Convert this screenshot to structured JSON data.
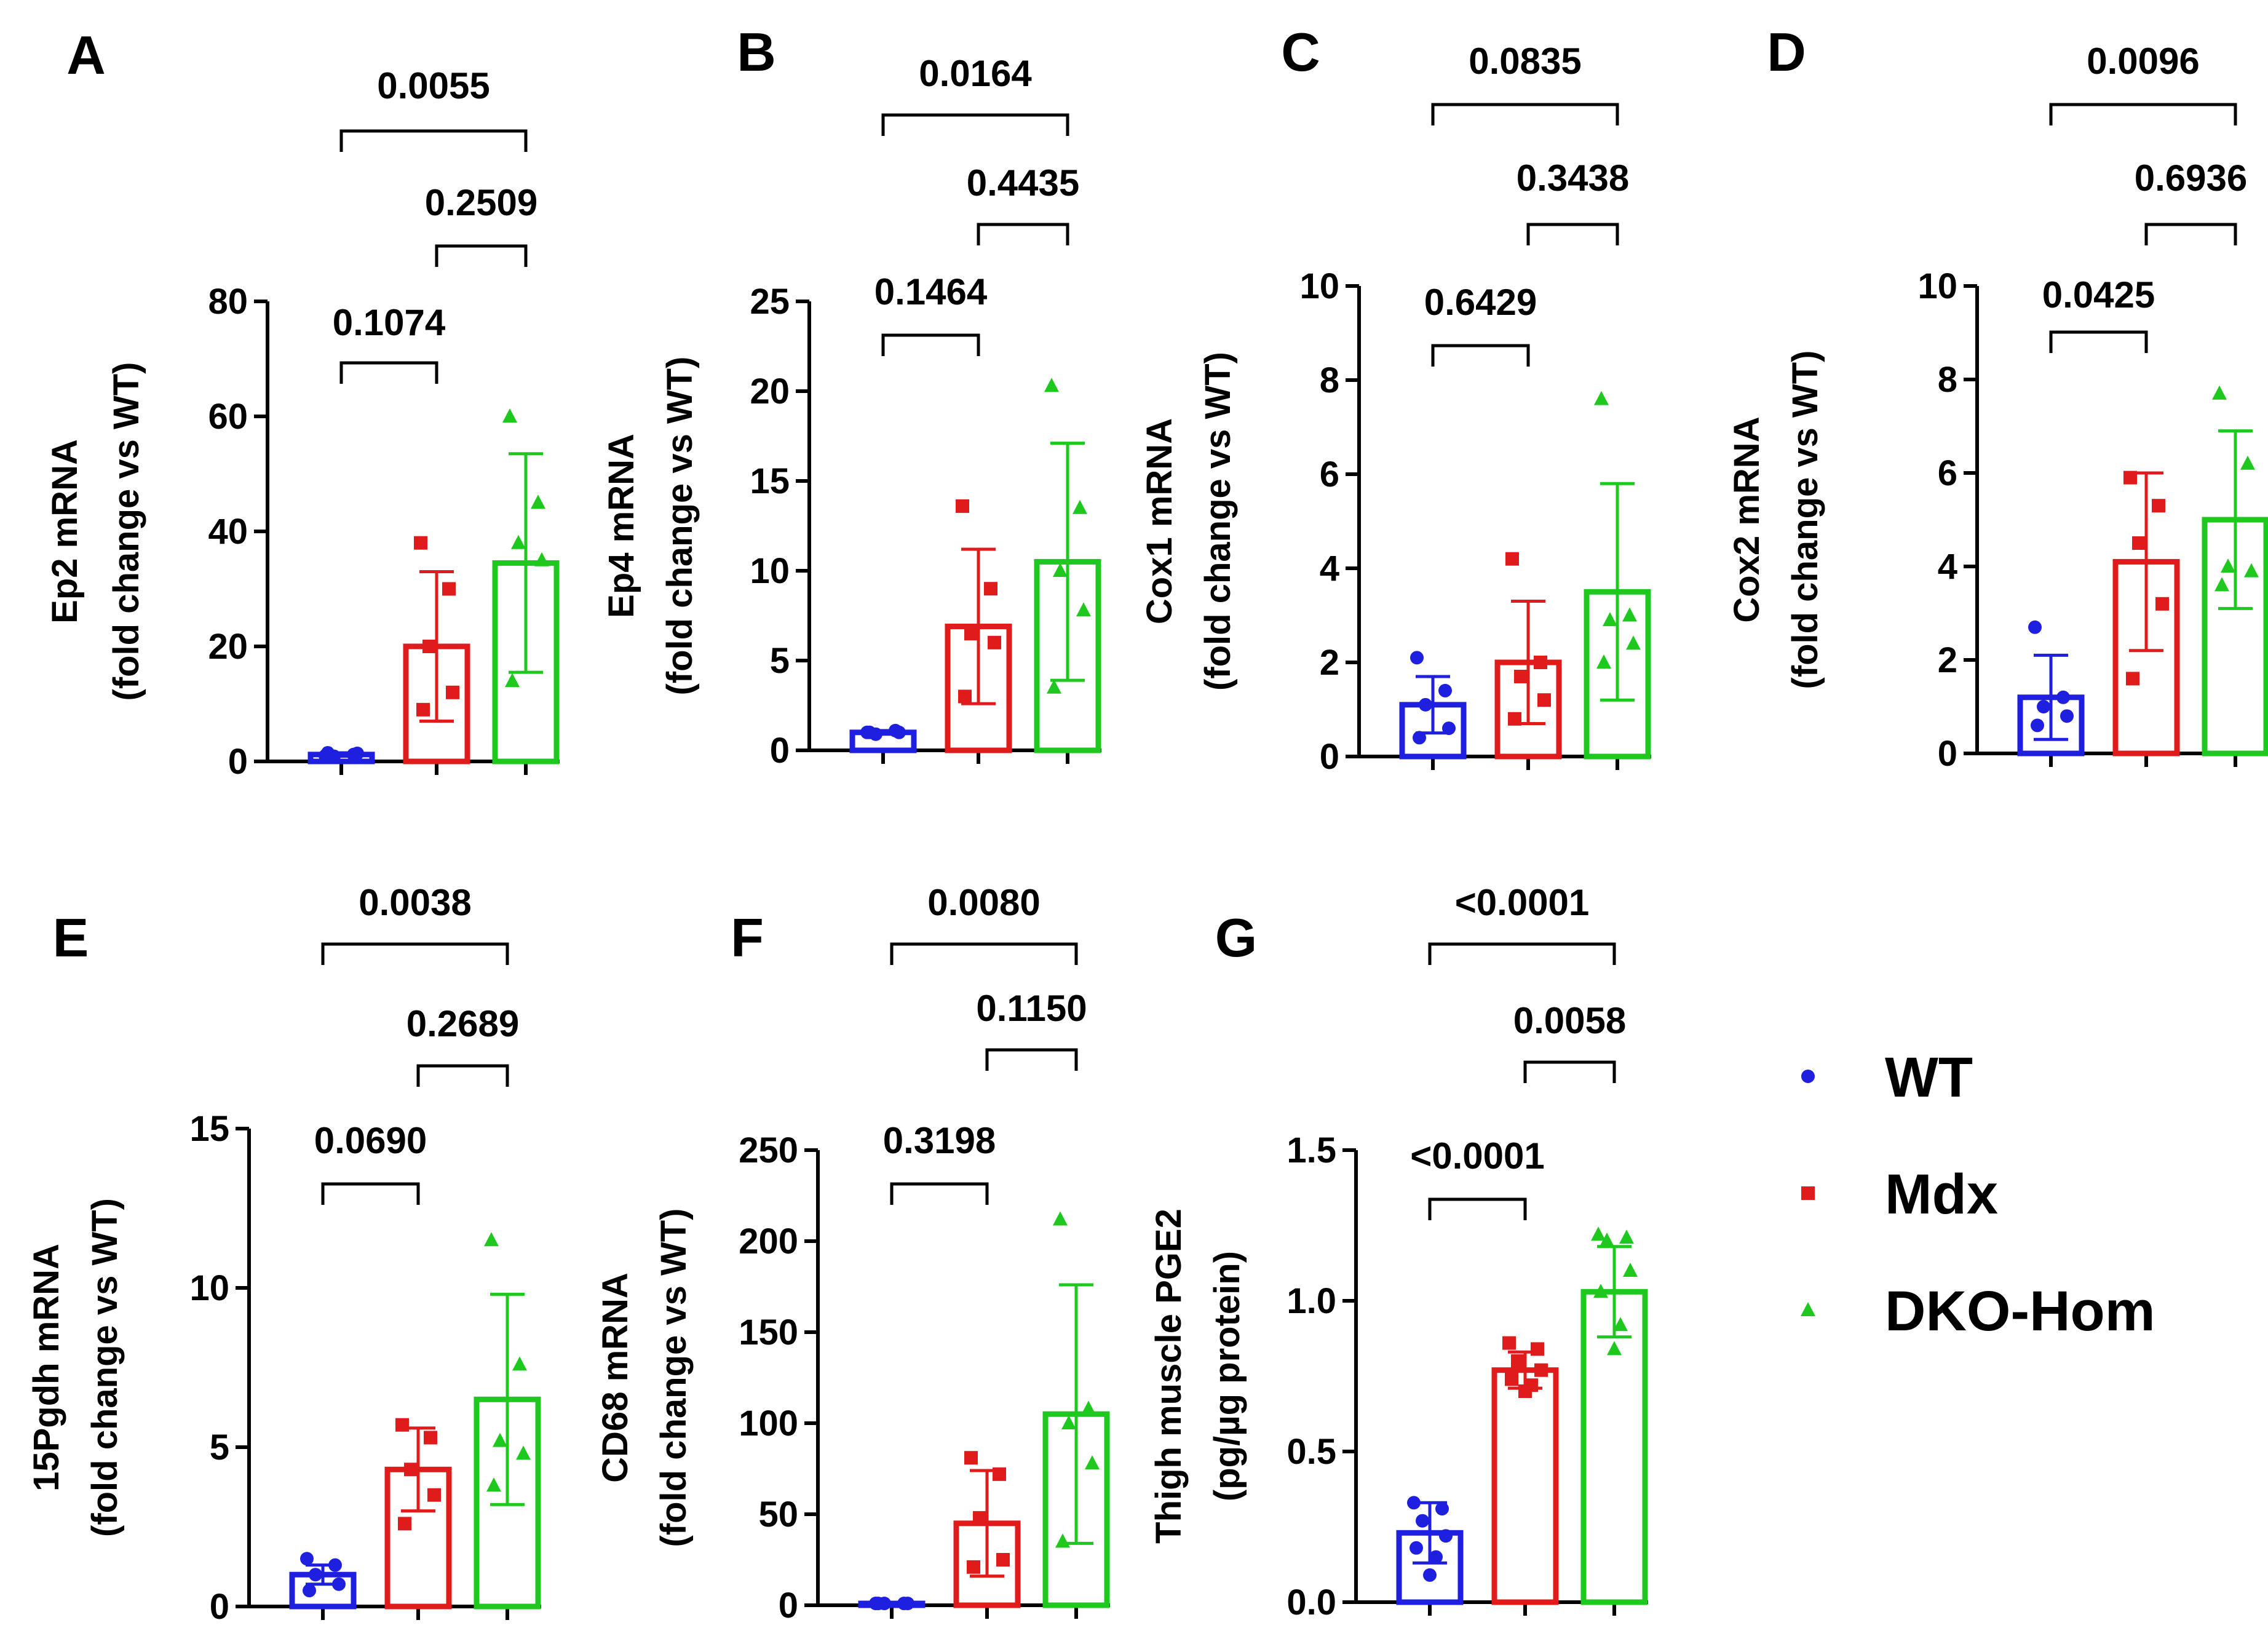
{
  "colors": {
    "WT": "#1f1fe0",
    "Mdx": "#e01b1b",
    "DKO-Hom": "#1ec81e",
    "axis": "#000000"
  },
  "legend": [
    {
      "label": "WT",
      "marker": "circle",
      "color": "#1f1fe0"
    },
    {
      "label": "Mdx",
      "marker": "square",
      "color": "#e01b1b"
    },
    {
      "label": "DKO-Hom",
      "marker": "triangle",
      "color": "#1ec81e"
    }
  ],
  "chart_data": [
    {
      "type": "bar",
      "panel": "A",
      "ylabel": [
        "Ep2 mRNA",
        "(fold change vs WT)"
      ],
      "ylim": [
        0,
        80
      ],
      "yticks": [
        0,
        20,
        40,
        60,
        80
      ],
      "categories": [
        "WT",
        "Mdx",
        "DKO-Hom"
      ],
      "means": [
        1.2,
        20,
        34.5
      ],
      "sd": [
        0.3,
        13,
        19
      ],
      "points": [
        [
          1.0,
          1.2,
          0.9,
          1.4,
          1.5
        ],
        [
          38,
          30,
          20,
          12,
          9
        ],
        [
          60,
          45,
          38,
          35,
          14
        ]
      ],
      "comparisons": [
        {
          "from": 0,
          "to": 1,
          "label": "0.1074"
        },
        {
          "from": 1,
          "to": 2,
          "label": "0.2509"
        },
        {
          "from": 0,
          "to": 2,
          "label": "0.0055"
        }
      ]
    },
    {
      "type": "bar",
      "panel": "B",
      "ylabel": [
        "Ep4 mRNA",
        "(fold change vs WT)"
      ],
      "ylim": [
        0,
        25
      ],
      "yticks": [
        0,
        5,
        10,
        15,
        20,
        25
      ],
      "categories": [
        "WT",
        "Mdx",
        "DKO-Hom"
      ],
      "means": [
        1.0,
        6.9,
        10.5
      ],
      "sd": [
        0.1,
        4.3,
        6.6
      ],
      "points": [
        [
          1.0,
          1.1,
          0.9,
          1.0,
          1.0
        ],
        [
          13.6,
          9.0,
          6.5,
          6.0,
          3.0
        ],
        [
          20.3,
          13.5,
          10.0,
          7.8,
          3.5
        ]
      ],
      "comparisons": [
        {
          "from": 0,
          "to": 1,
          "label": "0.1464"
        },
        {
          "from": 1,
          "to": 2,
          "label": "0.4435"
        },
        {
          "from": 0,
          "to": 2,
          "label": "0.0164"
        }
      ]
    },
    {
      "type": "bar",
      "panel": "C",
      "ylabel": [
        "Cox1 mRNA",
        "(fold change vs WT)"
      ],
      "ylim": [
        0,
        10
      ],
      "yticks": [
        0,
        2,
        4,
        6,
        8,
        10
      ],
      "categories": [
        "WT",
        "Mdx",
        "DKO-Hom"
      ],
      "means": [
        1.1,
        2.0,
        3.5
      ],
      "sd": [
        0.6,
        1.3,
        2.3
      ],
      "points": [
        [
          2.1,
          1.4,
          1.1,
          0.6,
          0.4
        ],
        [
          4.2,
          2.0,
          1.7,
          1.2,
          0.8
        ],
        [
          7.6,
          3.0,
          2.9,
          2.4,
          2.0
        ]
      ],
      "comparisons": [
        {
          "from": 0,
          "to": 1,
          "label": "0.6429"
        },
        {
          "from": 1,
          "to": 2,
          "label": "0.3438"
        },
        {
          "from": 0,
          "to": 2,
          "label": "0.0835"
        }
      ]
    },
    {
      "type": "bar",
      "panel": "D",
      "ylabel": [
        "Cox2 mRNA",
        "(fold change vs WT)"
      ],
      "ylim": [
        0,
        10
      ],
      "yticks": [
        0,
        2,
        4,
        6,
        8,
        10
      ],
      "categories": [
        "WT",
        "Mdx",
        "DKO-Hom"
      ],
      "means": [
        1.2,
        4.1,
        5.0
      ],
      "sd": [
        0.9,
        1.9,
        1.9
      ],
      "points": [
        [
          2.7,
          1.2,
          1.0,
          0.8,
          0.6
        ],
        [
          5.9,
          5.3,
          4.5,
          3.2,
          1.6
        ],
        [
          7.7,
          6.2,
          4.0,
          3.9,
          3.6
        ]
      ],
      "comparisons": [
        {
          "from": 0,
          "to": 1,
          "label": "0.0425"
        },
        {
          "from": 1,
          "to": 2,
          "label": "0.6936"
        },
        {
          "from": 0,
          "to": 2,
          "label": "0.0096"
        }
      ]
    },
    {
      "type": "bar",
      "panel": "E",
      "ylabel": [
        "15Pgdh mRNA",
        "(fold change vs WT)"
      ],
      "ylim": [
        0,
        15
      ],
      "yticks": [
        0,
        5,
        10,
        15
      ],
      "categories": [
        "WT",
        "Mdx",
        "DKO-Hom"
      ],
      "means": [
        1.0,
        4.3,
        6.5
      ],
      "sd": [
        0.3,
        1.3,
        3.3
      ],
      "points": [
        [
          1.5,
          1.3,
          1.0,
          0.7,
          0.5
        ],
        [
          5.7,
          5.3,
          4.3,
          3.5,
          2.6
        ],
        [
          11.5,
          7.6,
          5.2,
          4.8,
          3.8
        ]
      ],
      "comparisons": [
        {
          "from": 0,
          "to": 1,
          "label": "0.0690"
        },
        {
          "from": 1,
          "to": 2,
          "label": "0.2689"
        },
        {
          "from": 0,
          "to": 2,
          "label": "0.0038"
        }
      ]
    },
    {
      "type": "bar",
      "panel": "F",
      "ylabel": [
        "CD68 mRNA",
        "(fold change vs WT)"
      ],
      "ylim": [
        0,
        250
      ],
      "yticks": [
        0,
        50,
        100,
        150,
        200,
        250
      ],
      "categories": [
        "WT",
        "Mdx",
        "DKO-Hom"
      ],
      "means": [
        1,
        45,
        105
      ],
      "sd": [
        0.5,
        29,
        71
      ],
      "points": [
        [
          1,
          1,
          1,
          1,
          1
        ],
        [
          81,
          72,
          48,
          25,
          21
        ],
        [
          212,
          108,
          100,
          78,
          35
        ]
      ],
      "comparisons": [
        {
          "from": 0,
          "to": 1,
          "label": "0.3198"
        },
        {
          "from": 1,
          "to": 2,
          "label": "0.1150"
        },
        {
          "from": 0,
          "to": 2,
          "label": "0.0080"
        }
      ]
    },
    {
      "type": "bar",
      "panel": "G",
      "ylabel": [
        "Thigh muscle PGE2",
        "(pg/µg protein)"
      ],
      "ylim": [
        0,
        1.5
      ],
      "yticks": [
        0.0,
        0.5,
        1.0,
        1.5
      ],
      "tick_decimals": 1,
      "categories": [
        "WT",
        "Mdx",
        "DKO-Hom"
      ],
      "means": [
        0.23,
        0.77,
        1.03
      ],
      "sd": [
        0.1,
        0.06,
        0.15
      ],
      "points": [
        [
          0.33,
          0.31,
          0.27,
          0.22,
          0.18,
          0.15,
          0.09
        ],
        [
          0.86,
          0.84,
          0.8,
          0.77,
          0.74,
          0.72,
          0.7
        ],
        [
          1.22,
          1.21,
          1.2,
          1.1,
          1.03,
          0.92,
          0.84
        ]
      ],
      "comparisons": [
        {
          "from": 0,
          "to": 1,
          "label": "<0.0001"
        },
        {
          "from": 1,
          "to": 2,
          "label": "0.0058"
        },
        {
          "from": 0,
          "to": 2,
          "label": "<0.0001"
        }
      ]
    }
  ]
}
